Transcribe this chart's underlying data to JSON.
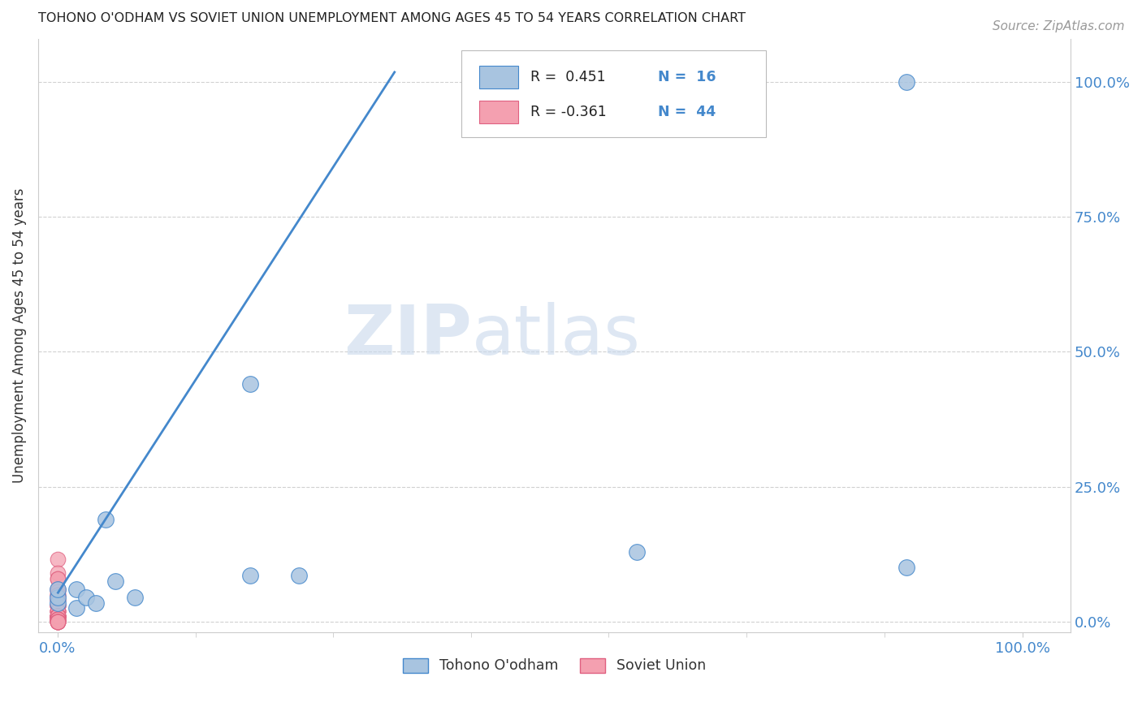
{
  "title": "TOHONO O'ODHAM VS SOVIET UNION UNEMPLOYMENT AMONG AGES 45 TO 54 YEARS CORRELATION CHART",
  "source": "Source: ZipAtlas.com",
  "xlabel_ticks": [
    "0.0%",
    "100.0%"
  ],
  "ylabel_ticks": [
    "0.0%",
    "25.0%",
    "50.0%",
    "75.0%",
    "100.0%"
  ],
  "ylabel_label": "Unemployment Among Ages 45 to 54 years",
  "legend_blue_r": "R =  0.451",
  "legend_blue_n": "N =  16",
  "legend_pink_r": "R = -0.361",
  "legend_pink_n": "N =  44",
  "legend_blue_label": "Tohono O'odham",
  "legend_pink_label": "Soviet Union",
  "blue_color": "#a8c4e0",
  "blue_line_color": "#4488cc",
  "pink_color": "#f4a0b0",
  "pink_outline_color": "#e06080",
  "watermark_zip": "ZIP",
  "watermark_atlas": "atlas",
  "blue_scatter_x": [
    0.05,
    0.88,
    0.0,
    0.0,
    0.0,
    0.02,
    0.02,
    0.03,
    0.04,
    0.06,
    0.08,
    0.2,
    0.2,
    0.25,
    0.6,
    0.88
  ],
  "blue_scatter_y": [
    0.19,
    1.0,
    0.035,
    0.045,
    0.06,
    0.025,
    0.06,
    0.045,
    0.035,
    0.075,
    0.045,
    0.44,
    0.085,
    0.085,
    0.13,
    0.1
  ],
  "pink_scatter_x": [
    0.0,
    0.0,
    0.0,
    0.0,
    0.0,
    0.0,
    0.0,
    0.0,
    0.0,
    0.0,
    0.0,
    0.0,
    0.0,
    0.0,
    0.0,
    0.0,
    0.0,
    0.0,
    0.0,
    0.0,
    0.0,
    0.0,
    0.0,
    0.0,
    0.0,
    0.0,
    0.0,
    0.0,
    0.0,
    0.0,
    0.0,
    0.0,
    0.0,
    0.0,
    0.0,
    0.0,
    0.0,
    0.0,
    0.0,
    0.0,
    0.0,
    0.0,
    0.0,
    0.0
  ],
  "pink_scatter_y": [
    0.115,
    0.09,
    0.08,
    0.08,
    0.06,
    0.06,
    0.055,
    0.05,
    0.05,
    0.05,
    0.04,
    0.04,
    0.04,
    0.03,
    0.03,
    0.03,
    0.03,
    0.03,
    0.02,
    0.02,
    0.02,
    0.02,
    0.02,
    0.01,
    0.01,
    0.01,
    0.01,
    0.01,
    0.01,
    0.01,
    0.01,
    0.01,
    0.005,
    0.005,
    0.005,
    0.005,
    0.005,
    0.005,
    0.0,
    0.0,
    0.0,
    0.0,
    0.0,
    0.0
  ],
  "blue_line_x": [
    0.0,
    0.35
  ],
  "blue_line_y": [
    0.052,
    1.02
  ],
  "background_color": "#ffffff",
  "grid_color": "#cccccc"
}
